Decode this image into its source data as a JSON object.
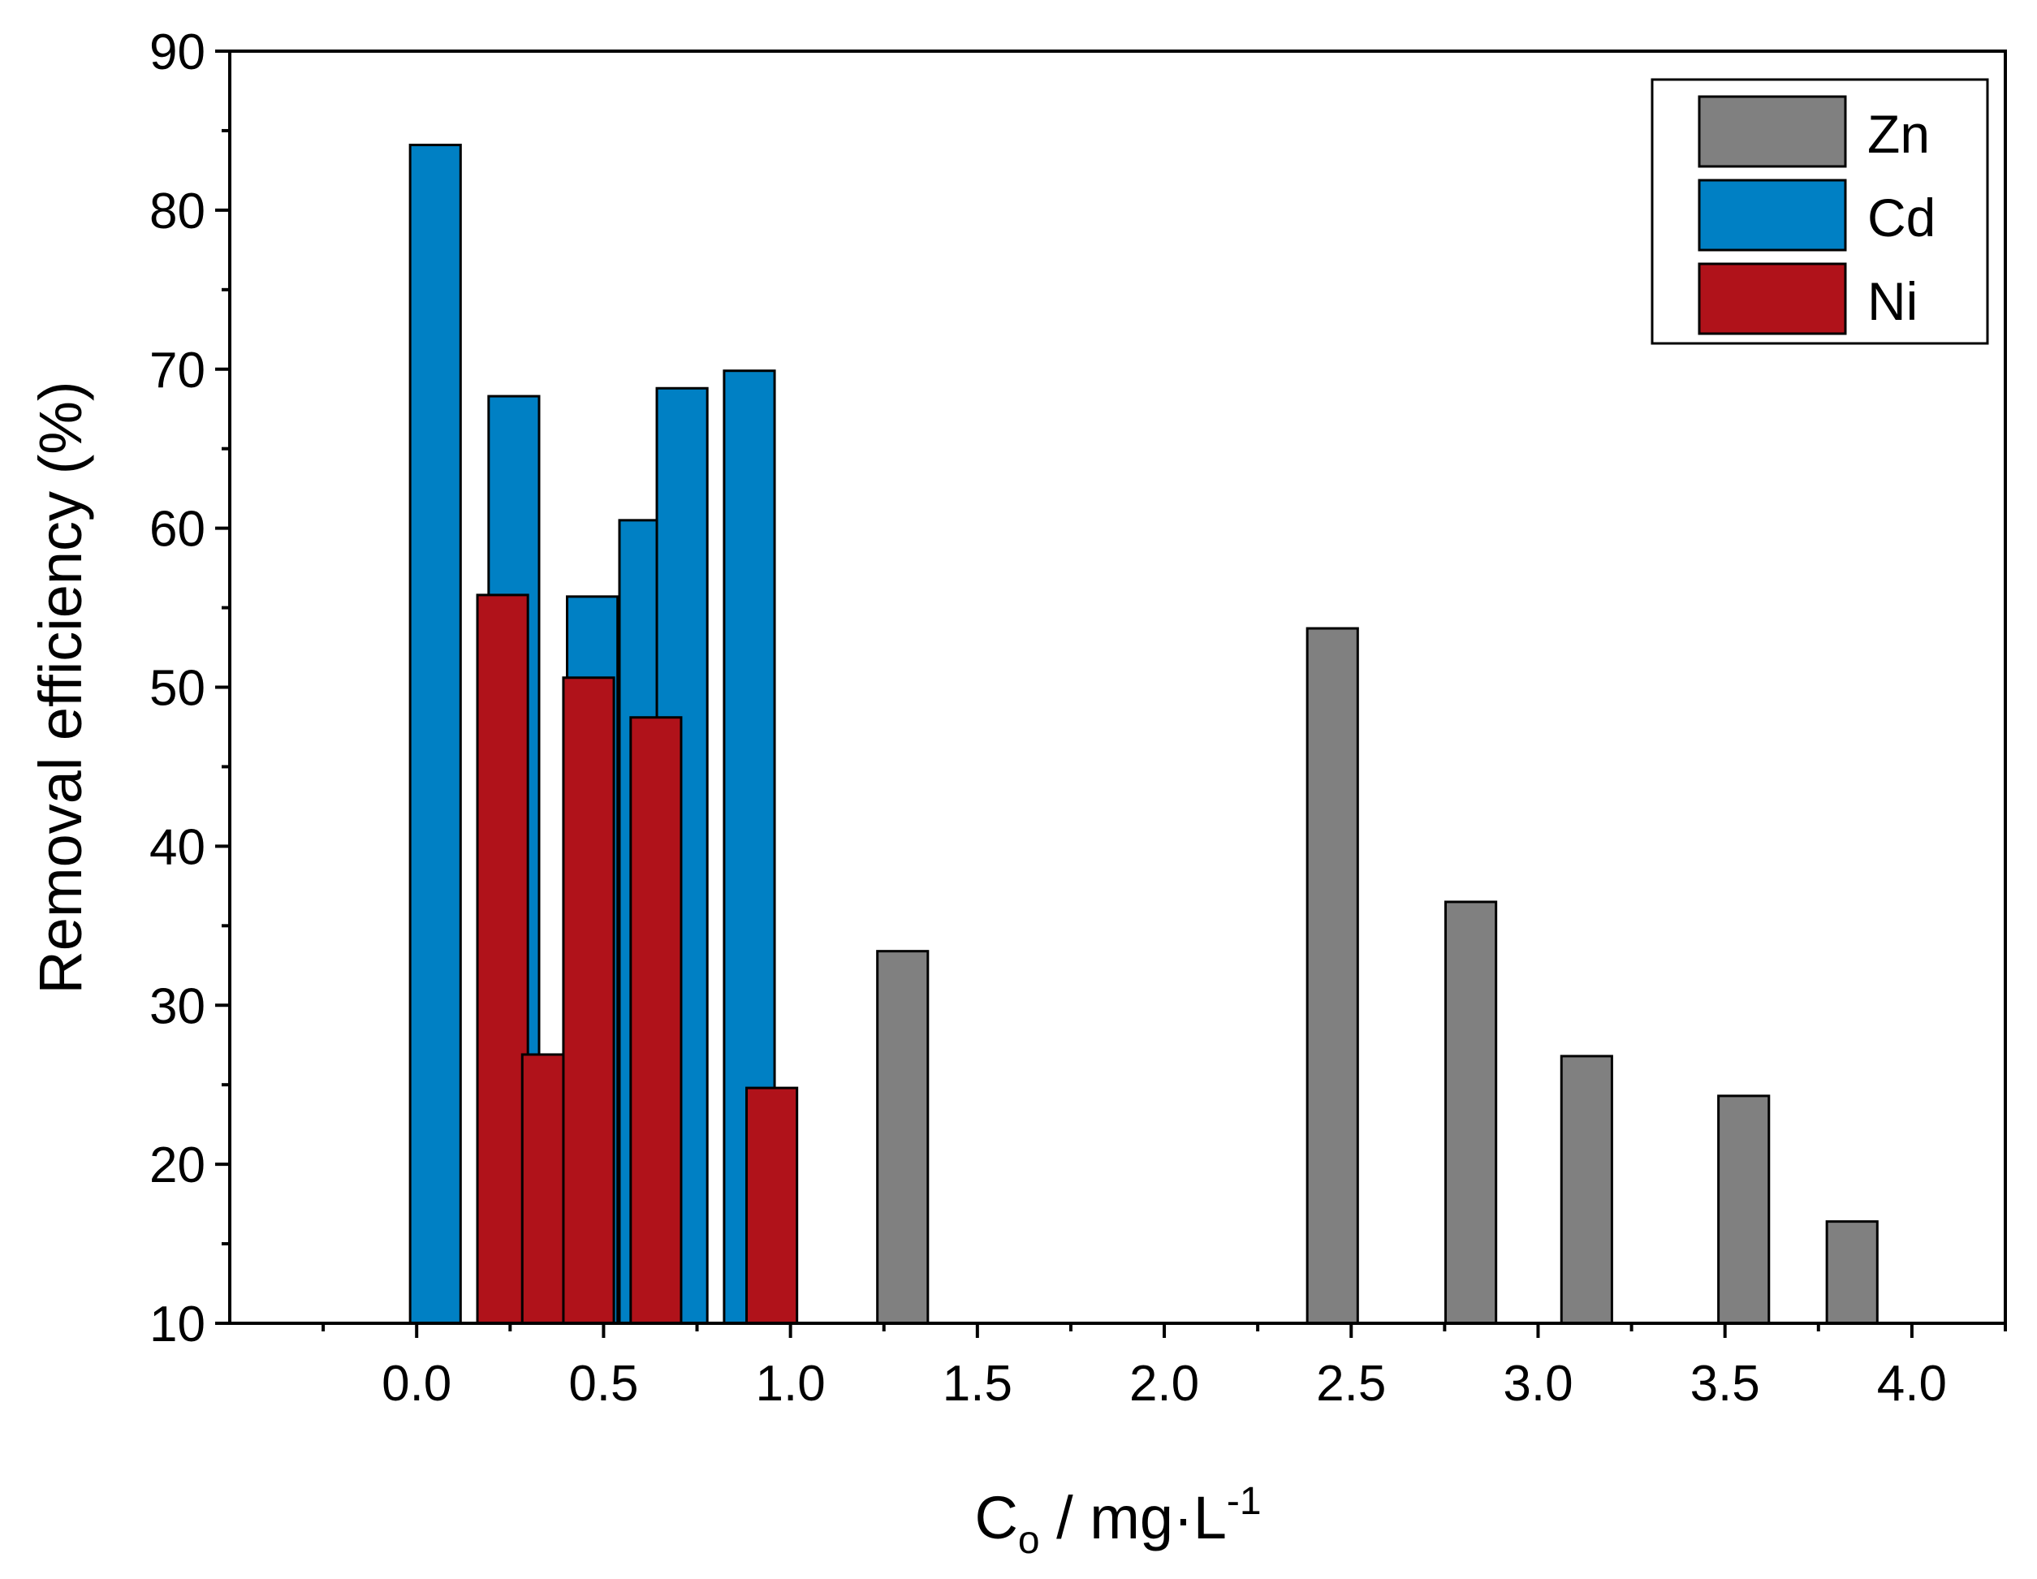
{
  "chart_data": {
    "type": "bar",
    "title": "",
    "xlabel": {
      "main": "C",
      "subscript": "o",
      "rest": " / mg·L",
      "superscript": "-1"
    },
    "ylabel": "Removal efficiency (%)",
    "xlim": [
      -0.5,
      4.25
    ],
    "ylim": [
      10,
      90
    ],
    "xticks": [
      "0.0",
      "0.5",
      "1.0",
      "1.5",
      "2.0",
      "2.5",
      "3.0",
      "3.5",
      "4.0"
    ],
    "yticks": [
      "10",
      "20",
      "30",
      "40",
      "50",
      "60",
      "70",
      "80",
      "90"
    ],
    "grid": false,
    "legend_position": "top-right",
    "series": [
      {
        "name": "Zn",
        "color": "#808080",
        "bar_width": 0.135,
        "points": [
          {
            "x": 1.3,
            "y": 33.4
          },
          {
            "x": 2.45,
            "y": 53.7
          },
          {
            "x": 2.82,
            "y": 36.5
          },
          {
            "x": 3.13,
            "y": 26.8
          },
          {
            "x": 3.55,
            "y": 24.3
          },
          {
            "x": 3.84,
            "y": 16.4
          }
        ]
      },
      {
        "name": "Cd",
        "color": "#0080c4",
        "bar_width": 0.135,
        "points": [
          {
            "x": 0.05,
            "y": 84.1
          },
          {
            "x": 0.26,
            "y": 68.3
          },
          {
            "x": 0.47,
            "y": 55.7
          },
          {
            "x": 0.61,
            "y": 60.5
          },
          {
            "x": 0.71,
            "y": 68.8
          },
          {
            "x": 0.89,
            "y": 69.9
          }
        ]
      },
      {
        "name": "Ni",
        "color": "#b0121a",
        "bar_width": 0.135,
        "points": [
          {
            "x": 0.23,
            "y": 55.8
          },
          {
            "x": 0.35,
            "y": 26.9
          },
          {
            "x": 0.46,
            "y": 50.6
          },
          {
            "x": 0.64,
            "y": 48.1
          },
          {
            "x": 0.95,
            "y": 24.8
          }
        ]
      }
    ]
  }
}
